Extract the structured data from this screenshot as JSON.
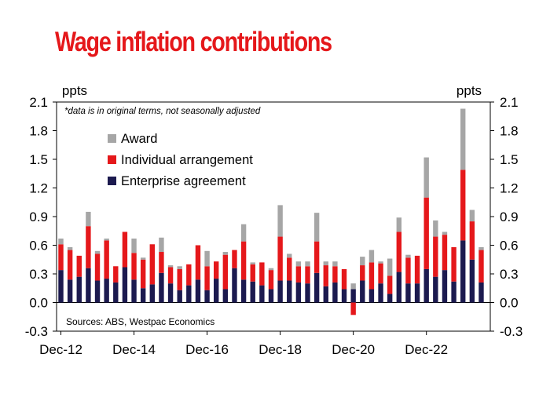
{
  "title": "Wage inflation contributions",
  "colors": {
    "title": "#e5181b",
    "award": "#a6a6a6",
    "individual": "#e5181b",
    "enterprise": "#1c1a4f"
  },
  "chart_data": {
    "type": "bar",
    "stacked": true,
    "y_unit_left": "ppts",
    "y_unit_right": "ppts",
    "note": "*data is in original terms, not seasonally adjusted",
    "source": "Sources: ABS, Westpac Economics",
    "ylim": [
      -0.3,
      2.1
    ],
    "yticks": [
      "-0.3",
      "0.0",
      "0.3",
      "0.6",
      "0.9",
      "1.2",
      "1.5",
      "1.8",
      "2.1"
    ],
    "x_tick_labels": [
      {
        "label": "Dec-12",
        "index": 0
      },
      {
        "label": "Dec-14",
        "index": 8
      },
      {
        "label": "Dec-16",
        "index": 16
      },
      {
        "label": "Dec-18",
        "index": 24
      },
      {
        "label": "Dec-20",
        "index": 32
      },
      {
        "label": "Dec-22",
        "index": 40
      }
    ],
    "legend_position": "upper-left",
    "series": [
      {
        "name": "Award",
        "color": "#a6a6a6",
        "values": [
          0.06,
          0.03,
          0.0,
          0.15,
          0.03,
          0.02,
          0.0,
          0.0,
          0.15,
          0.02,
          0.0,
          0.15,
          0.02,
          0.03,
          0.0,
          0.0,
          0.16,
          0.0,
          0.03,
          0.0,
          0.18,
          0.02,
          0.0,
          0.02,
          0.33,
          0.04,
          0.05,
          0.05,
          0.3,
          0.04,
          0.05,
          0.0,
          0.06,
          0.09,
          0.13,
          0.02,
          0.18,
          0.15,
          0.03,
          0.0,
          0.42,
          0.17,
          0.03,
          0.0,
          0.64,
          0.12,
          0.03
        ]
      },
      {
        "name": "Individual arrangement",
        "color": "#e5181b",
        "values": [
          0.27,
          0.31,
          0.22,
          0.44,
          0.28,
          0.4,
          0.17,
          0.37,
          0.28,
          0.3,
          0.42,
          0.22,
          0.17,
          0.22,
          0.22,
          0.36,
          0.25,
          0.18,
          0.36,
          0.19,
          0.4,
          0.18,
          0.24,
          0.2,
          0.46,
          0.24,
          0.17,
          0.18,
          0.33,
          0.22,
          0.17,
          0.21,
          -0.13,
          0.16,
          0.28,
          0.21,
          0.19,
          0.42,
          0.27,
          0.29,
          0.75,
          0.42,
          0.37,
          0.36,
          0.74,
          0.4,
          0.34
        ]
      },
      {
        "name": "Enterprise agreement",
        "color": "#1c1a4f",
        "values": [
          0.34,
          0.24,
          0.27,
          0.36,
          0.23,
          0.25,
          0.21,
          0.37,
          0.24,
          0.15,
          0.19,
          0.31,
          0.2,
          0.13,
          0.18,
          0.24,
          0.13,
          0.25,
          0.14,
          0.36,
          0.24,
          0.22,
          0.18,
          0.14,
          0.23,
          0.23,
          0.21,
          0.2,
          0.31,
          0.17,
          0.21,
          0.14,
          0.14,
          0.23,
          0.14,
          0.2,
          0.09,
          0.32,
          0.2,
          0.2,
          0.35,
          0.27,
          0.34,
          0.22,
          0.65,
          0.45,
          0.21
        ]
      }
    ]
  }
}
